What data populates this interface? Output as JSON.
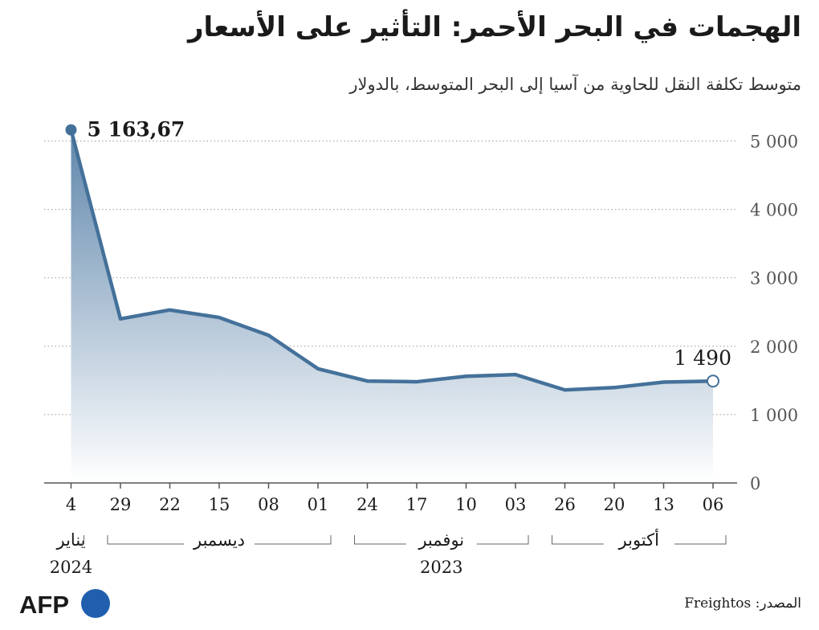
{
  "title": "الهجمات في البحر الأحمر: التأثير على الأسعار",
  "subtitle": "متوسط تكلفة النقل للحاوية من آسيا إلى البحر المتوسط، بالدولار",
  "source": "المصدر: Freightos",
  "logo": {
    "text": "AFP"
  },
  "colors": {
    "line": "#44719a",
    "fill_top": "#5f86ab",
    "fill_bottom": "#ffffff",
    "grid": "#999999"
  },
  "chart_data": {
    "type": "area",
    "unit": "USD",
    "x_order": "right-to-left",
    "x": [
      "06",
      "13",
      "20",
      "26",
      "03",
      "10",
      "17",
      "24",
      "01",
      "08",
      "15",
      "22",
      "29",
      "4"
    ],
    "values": [
      1490,
      1475,
      1395,
      1360,
      1585,
      1560,
      1480,
      1490,
      1670,
      2160,
      2420,
      2530,
      2400,
      5163.67
    ],
    "ylim": [
      0,
      5000
    ],
    "yticks": [
      {
        "value": 0,
        "label": "0"
      },
      {
        "value": 1000,
        "label": "1 000"
      },
      {
        "value": 2000,
        "label": "2 000"
      },
      {
        "value": 3000,
        "label": "3 000"
      },
      {
        "value": 4000,
        "label": "4 000"
      },
      {
        "value": 5000,
        "label": "5 000"
      }
    ],
    "grid": true,
    "annotations": [
      {
        "label": "5 163,67",
        "point_index": 13
      },
      {
        "label": "1 490",
        "point_index": 0
      }
    ],
    "months": [
      {
        "label": "أكتوبر",
        "from": 0,
        "to": 3
      },
      {
        "label": "نوفمبر",
        "from": 4,
        "to": 7
      },
      {
        "label": "ديسمبر",
        "from": 8,
        "to": 12
      },
      {
        "label": "يناير",
        "from": 13,
        "to": 13
      }
    ],
    "years": [
      {
        "label": "2023",
        "at": 5.5
      },
      {
        "label": "2024",
        "at": 13
      }
    ]
  }
}
